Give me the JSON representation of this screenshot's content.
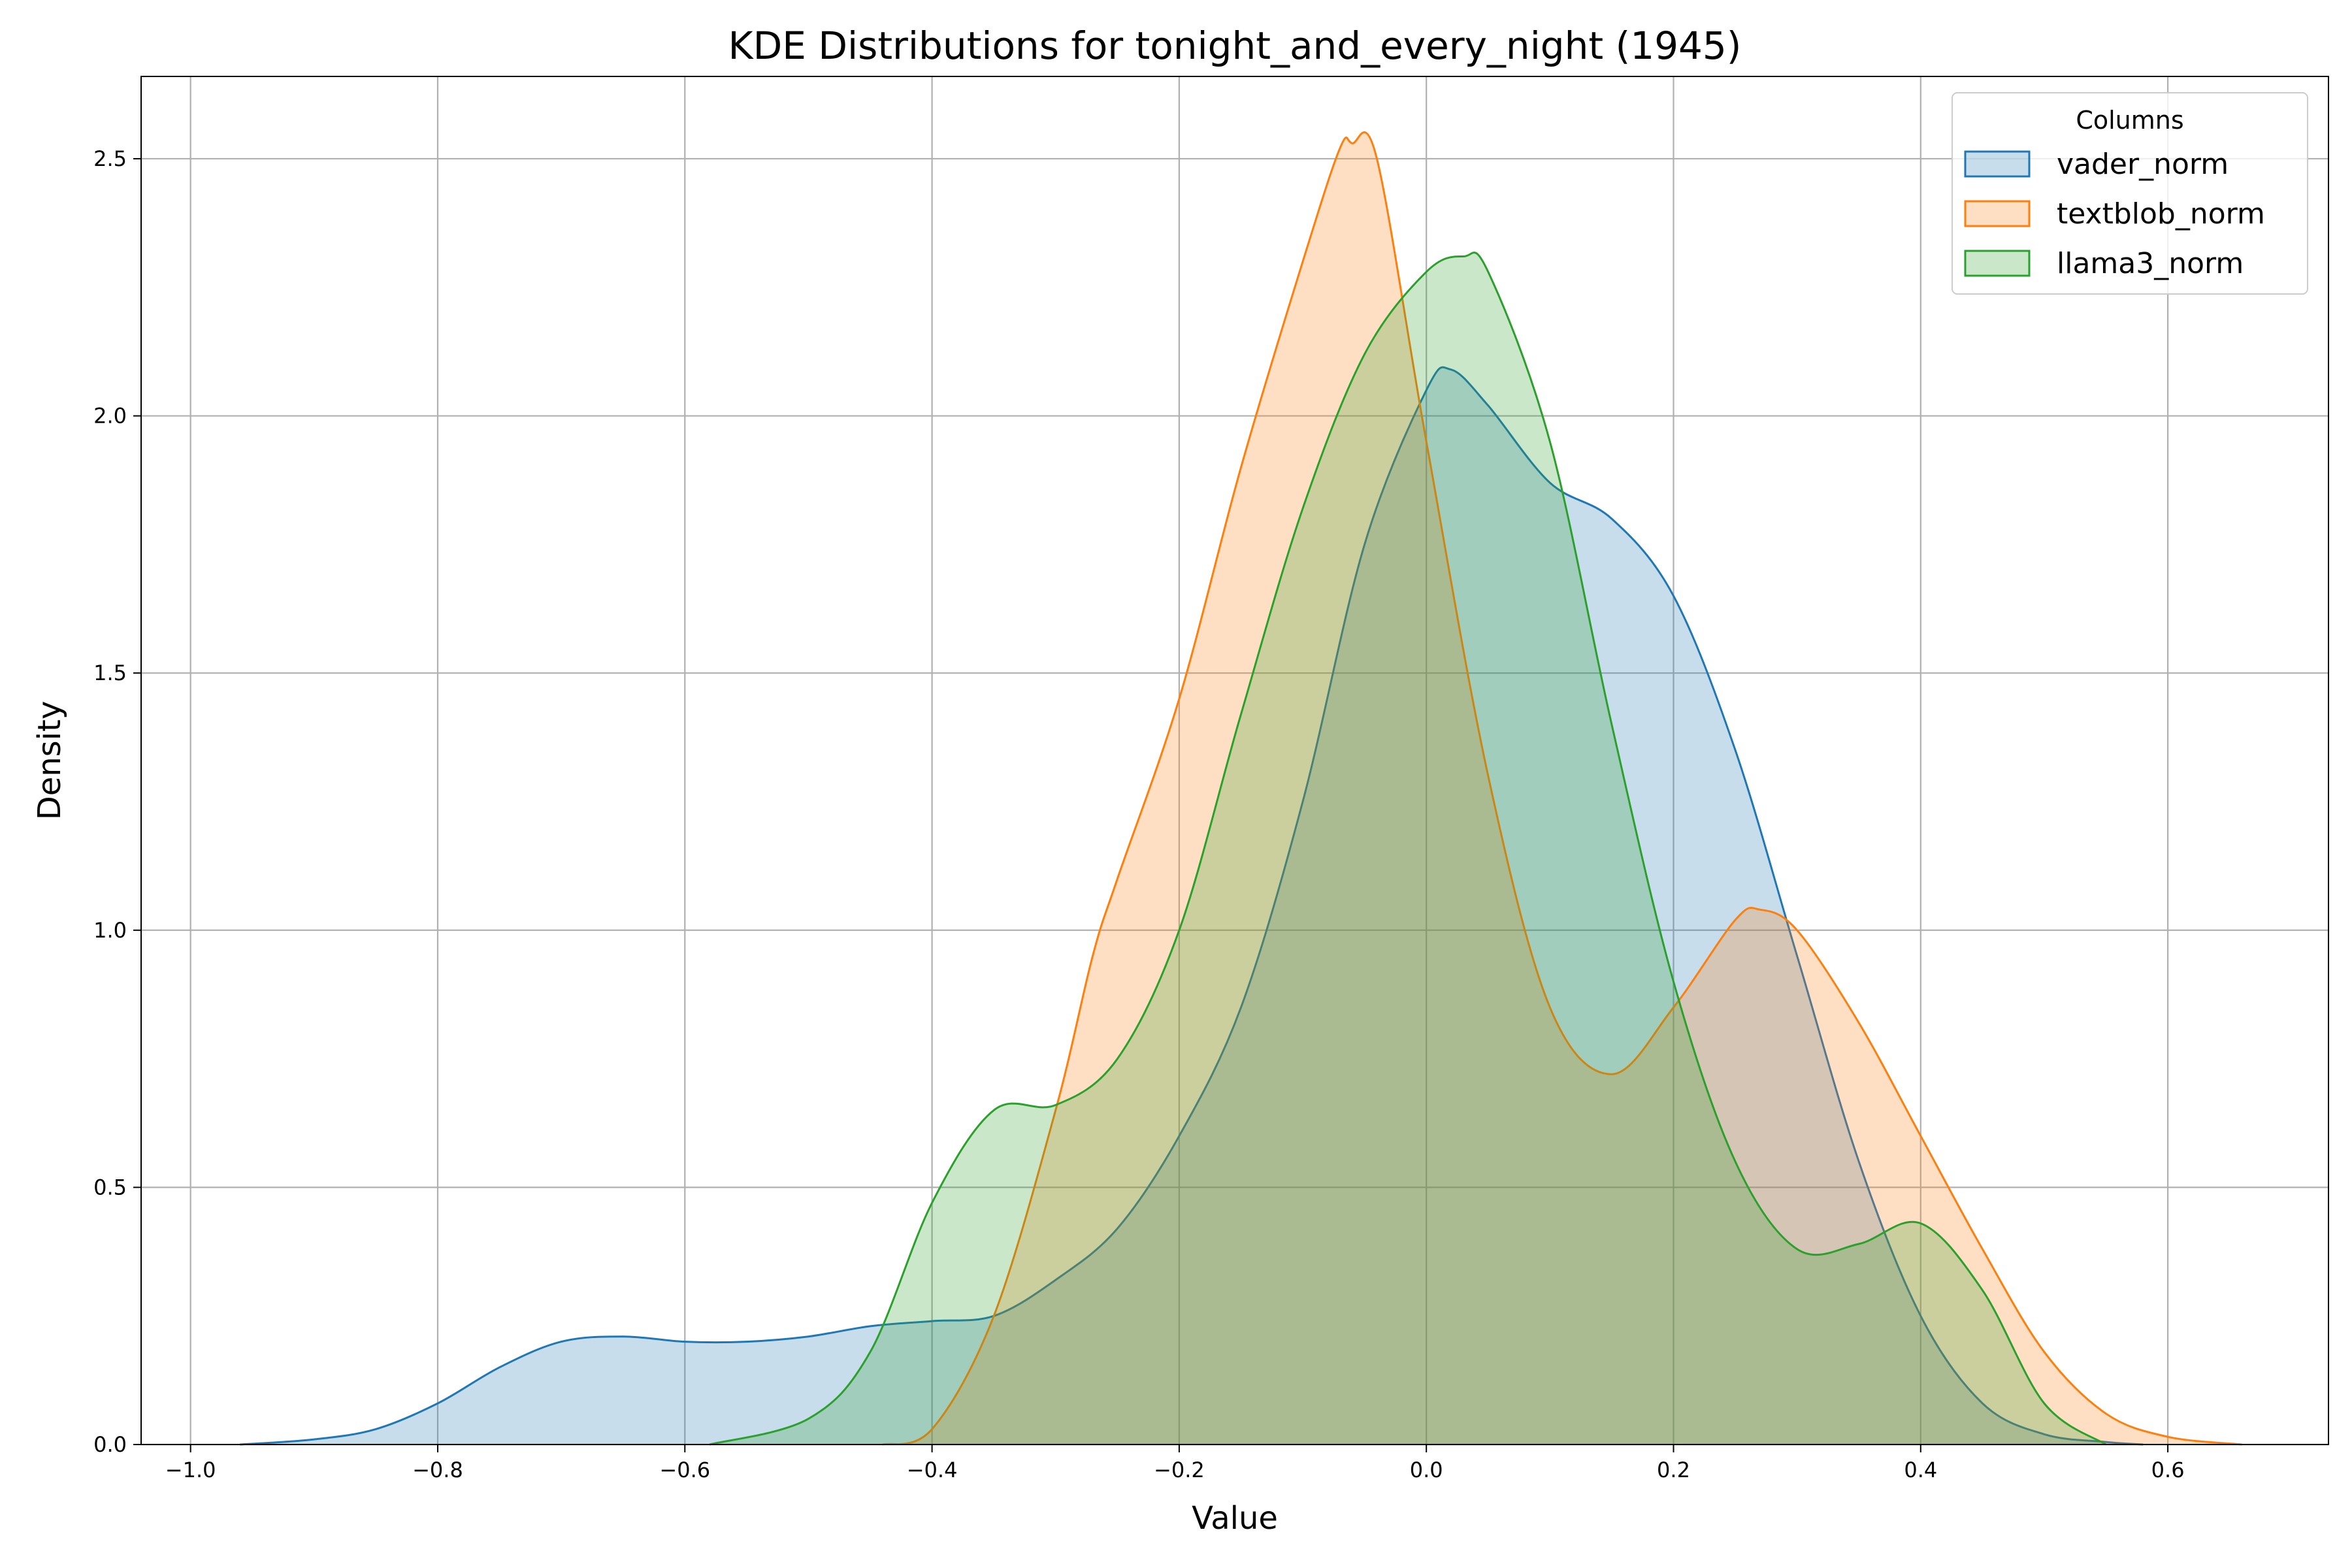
{
  "chart_data": {
    "type": "area",
    "title": "KDE Distributions for tonight_and_every_night (1945)",
    "xlabel": "Value",
    "ylabel": "Density",
    "xlim": [
      -1.04,
      0.73
    ],
    "ylim": [
      0,
      2.66
    ],
    "xticks": [
      -1.0,
      -0.8,
      -0.6,
      -0.4,
      -0.2,
      0.0,
      0.2,
      0.4,
      0.6
    ],
    "xtick_labels": [
      "−1.0",
      "−0.8",
      "−0.6",
      "−0.4",
      "−0.2",
      "0.0",
      "0.2",
      "0.4",
      "0.6"
    ],
    "yticks": [
      0.0,
      0.5,
      1.0,
      1.5,
      2.0,
      2.5
    ],
    "ytick_labels": [
      "0.0",
      "0.5",
      "1.0",
      "1.5",
      "2.0",
      "2.5"
    ],
    "grid": true,
    "legend": {
      "title": "Columns",
      "placement": "top-right"
    },
    "series": [
      {
        "name": "vader_norm",
        "color": "#1f77b4",
        "x": [
          -0.96,
          -0.9,
          -0.85,
          -0.8,
          -0.75,
          -0.7,
          -0.65,
          -0.6,
          -0.55,
          -0.5,
          -0.45,
          -0.4,
          -0.35,
          -0.3,
          -0.25,
          -0.2,
          -0.15,
          -0.1,
          -0.05,
          0.0,
          0.02,
          0.05,
          0.1,
          0.15,
          0.2,
          0.25,
          0.3,
          0.35,
          0.4,
          0.45,
          0.5,
          0.55,
          0.58
        ],
        "y": [
          0.0,
          0.01,
          0.03,
          0.08,
          0.15,
          0.2,
          0.21,
          0.2,
          0.2,
          0.21,
          0.23,
          0.24,
          0.25,
          0.32,
          0.42,
          0.6,
          0.85,
          1.25,
          1.75,
          2.05,
          2.09,
          2.02,
          1.87,
          1.8,
          1.65,
          1.35,
          0.95,
          0.55,
          0.25,
          0.08,
          0.02,
          0.005,
          0.0
        ]
      },
      {
        "name": "textblob_norm",
        "color": "#ff7f0e",
        "x": [
          -0.44,
          -0.4,
          -0.35,
          -0.3,
          -0.27,
          -0.25,
          -0.2,
          -0.15,
          -0.1,
          -0.07,
          -0.06,
          -0.04,
          0.0,
          0.05,
          0.1,
          0.15,
          0.2,
          0.25,
          0.27,
          0.3,
          0.35,
          0.4,
          0.45,
          0.5,
          0.55,
          0.6,
          0.66
        ],
        "y": [
          0.0,
          0.03,
          0.25,
          0.65,
          0.95,
          1.1,
          1.45,
          1.9,
          2.3,
          2.52,
          2.53,
          2.5,
          1.95,
          1.3,
          0.85,
          0.72,
          0.85,
          1.02,
          1.04,
          1.0,
          0.82,
          0.6,
          0.38,
          0.18,
          0.06,
          0.015,
          0.0
        ]
      },
      {
        "name": "llama3_norm",
        "color": "#2ca02c",
        "x": [
          -0.58,
          -0.5,
          -0.45,
          -0.4,
          -0.35,
          -0.3,
          -0.25,
          -0.2,
          -0.15,
          -0.1,
          -0.05,
          0.0,
          0.03,
          0.05,
          0.1,
          0.15,
          0.2,
          0.25,
          0.3,
          0.35,
          0.4,
          0.45,
          0.5,
          0.55
        ],
        "y": [
          0.0,
          0.05,
          0.18,
          0.47,
          0.65,
          0.66,
          0.75,
          1.0,
          1.42,
          1.82,
          2.12,
          2.28,
          2.31,
          2.28,
          1.95,
          1.4,
          0.9,
          0.55,
          0.38,
          0.39,
          0.43,
          0.3,
          0.08,
          0.0
        ]
      }
    ]
  }
}
